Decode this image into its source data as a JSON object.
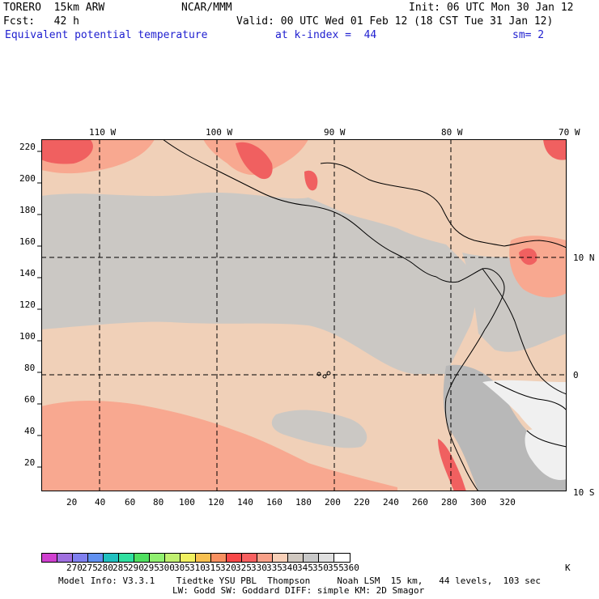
{
  "header": {
    "model": "TORERO  15km ARW",
    "center": "NCAR/MMM",
    "init": "Init: 06 UTC Mon 30 Jan 12",
    "fcst": "Fcst:   42 h",
    "valid": "Valid: 00 UTC Wed 01 Feb 12 (18 CST Tue 31 Jan 12)",
    "field": "Equivalent potential temperature",
    "level": "at k-index =  44",
    "smooth": "sm= 2"
  },
  "axes": {
    "top_lon_labels": [
      "110 W",
      "100 W",
      "90 W",
      "80 W",
      "70 W"
    ],
    "right_lat_labels": [
      "10 N",
      "0",
      "10 S"
    ],
    "left_ticks": [
      "220",
      "200",
      "180",
      "160",
      "140",
      "120",
      "100",
      "80",
      "60",
      "40",
      "20"
    ],
    "bottom_ticks": [
      "20",
      "40",
      "60",
      "80",
      "100",
      "120",
      "140",
      "160",
      "180",
      "200",
      "220",
      "240",
      "260",
      "280",
      "300",
      "320"
    ]
  },
  "colorbar": {
    "labels": [
      "270",
      "275",
      "280",
      "285",
      "290",
      "295",
      "300",
      "305",
      "310",
      "315",
      "320",
      "325",
      "330",
      "335",
      "340",
      "345",
      "350",
      "355",
      "360"
    ],
    "unit": "K",
    "colors": [
      "#d040d0",
      "#a070e0",
      "#8080f0",
      "#6090f0",
      "#20c0c0",
      "#30e0a0",
      "#50e060",
      "#90f070",
      "#c0f070",
      "#f0f060",
      "#f8c050",
      "#f89060",
      "#f84848",
      "#f86060",
      "#f8a088",
      "#f8d0b8",
      "#d0c8c0",
      "#c8c8c8",
      "#e0e0e0",
      "#ffffff"
    ]
  },
  "footer": {
    "line1": "Model Info: V3.3.1    Tiedtke YSU PBL  Thompson     Noah LSM  15 km,   44 levels,  103 sec",
    "line2": "LW: Godd SW: Goddard DIFF: simple KM: 2D Smagor"
  },
  "field_colors": {
    "background": "#f0d0b8",
    "gray": "#cbc8c4",
    "warm": "#f8a890",
    "hot": "#f06060",
    "dark_gray": "#b8b8b8",
    "light": "#f0f0f0"
  }
}
